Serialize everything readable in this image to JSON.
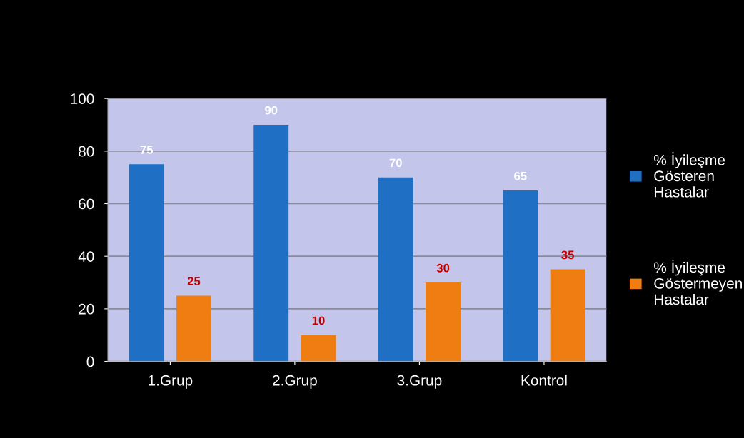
{
  "chart_data": {
    "type": "bar",
    "categories": [
      "1.Grup",
      "2.Grup",
      "3.Grup",
      "Kontrol"
    ],
    "series": [
      {
        "name": "% İyileşme Gösteren Hastalar",
        "color": "#1f6fc4",
        "values": [
          75,
          90,
          70,
          65
        ]
      },
      {
        "name": "% İyileşme Göstermeyen Hastalar",
        "color": "#f07d12",
        "values": [
          25,
          10,
          30,
          35
        ]
      }
    ],
    "ylim": [
      0,
      100
    ],
    "yticks": [
      0,
      20,
      40,
      60,
      80,
      100
    ],
    "grid": "y",
    "legend": "right",
    "data_labels": true
  }
}
